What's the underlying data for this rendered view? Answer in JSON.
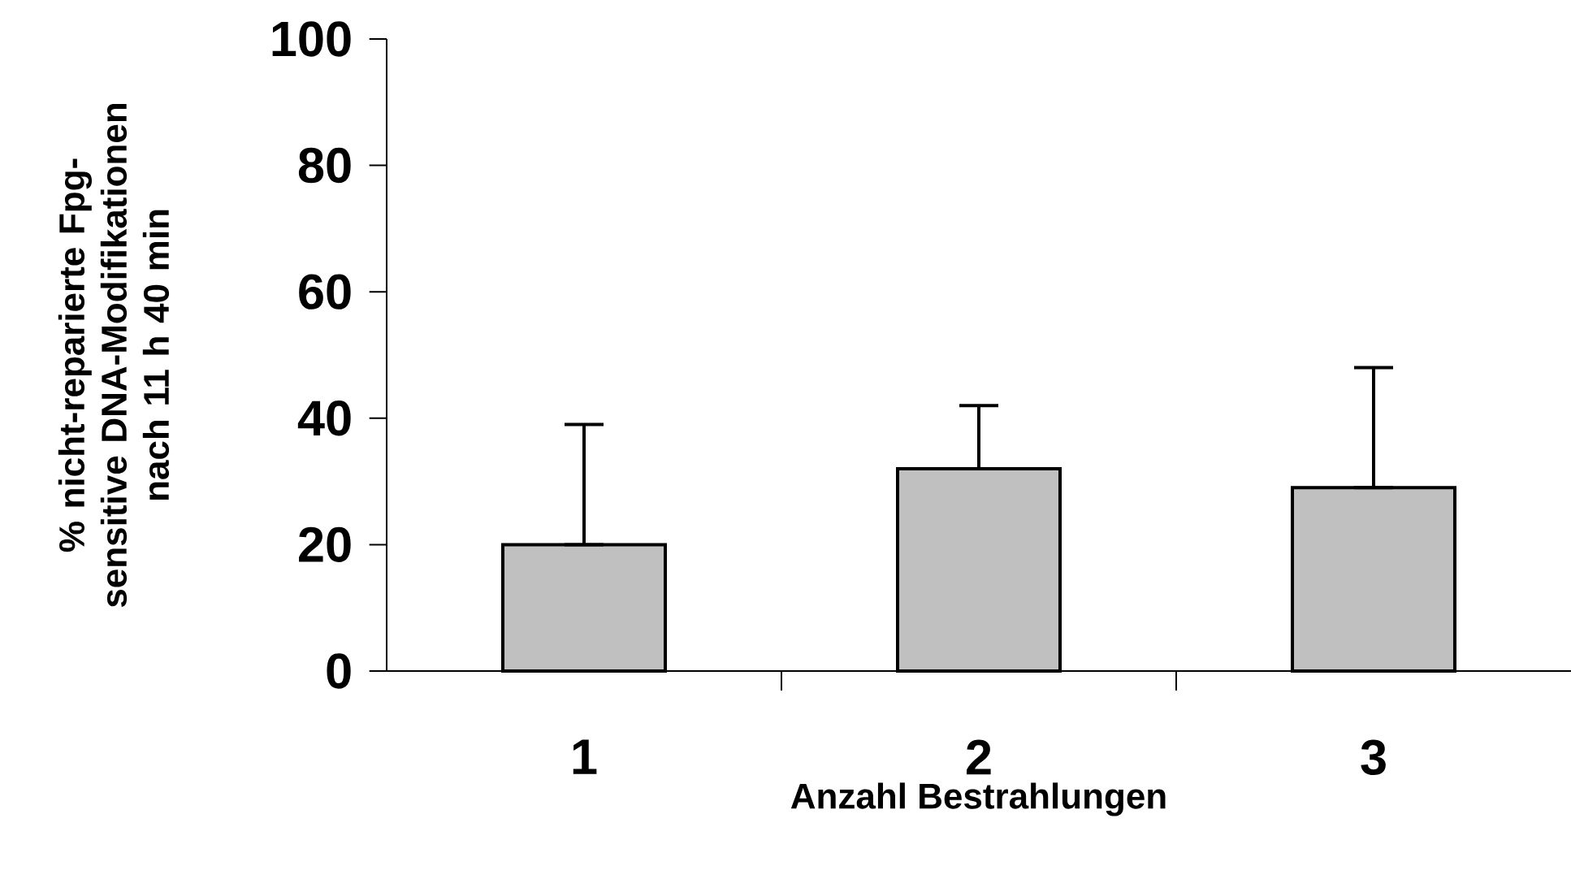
{
  "chart_data": {
    "type": "bar",
    "xlabel": "Anzahl Bestrahlungen",
    "ylabel": "% nicht-reparierte Fpg-sensitive DNA-Modifikationen nach 11 h 40 min",
    "categories": [
      "1",
      "2",
      "3"
    ],
    "values": [
      20,
      32,
      29
    ],
    "errors": [
      [
        20,
        39
      ],
      [
        32,
        42
      ],
      [
        29,
        48
      ]
    ],
    "color": "#c0c0c0",
    "ylim": [
      0,
      100
    ],
    "yticks": [
      0,
      20,
      40,
      60,
      80,
      100
    ],
    "grid": false
  }
}
